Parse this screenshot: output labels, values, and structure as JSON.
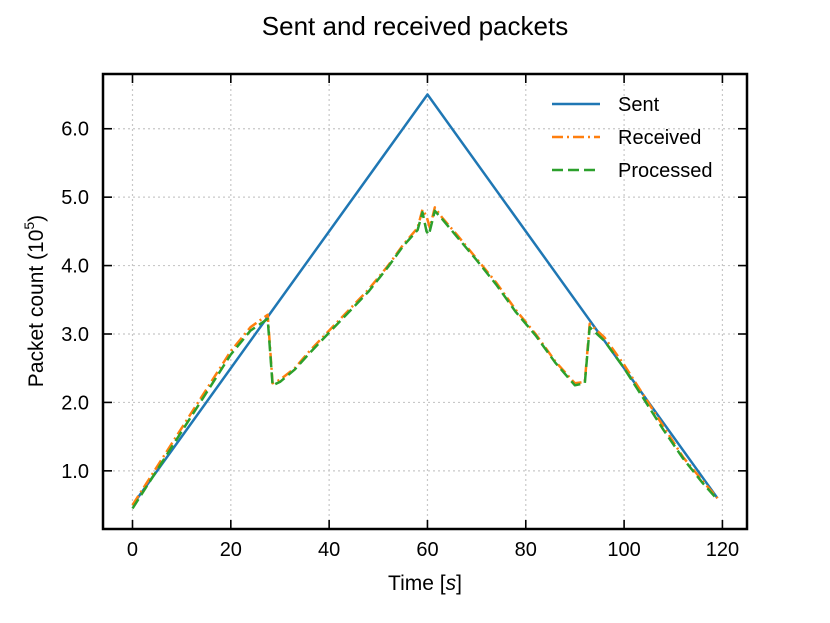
{
  "chart_data": {
    "type": "line",
    "title": "Sent and received packets",
    "xlabel": "Time [",
    "xlabel_unit": "s",
    "xlabel_close": "]",
    "ylabel": "Packet count (10",
    "ylabel_exp": "5",
    "ylabel_close": ")",
    "xlim": [
      -6,
      125
    ],
    "ylim": [
      0.15,
      6.8
    ],
    "xticks": [
      0,
      20,
      40,
      60,
      80,
      100,
      120
    ],
    "xtick_labels": [
      "0",
      "20",
      "40",
      "60",
      "80",
      "100",
      "120"
    ],
    "yticks": [
      1,
      2,
      3,
      4,
      5,
      6
    ],
    "ytick_labels": [
      "1.0",
      "2.0",
      "3.0",
      "4.0",
      "5.0",
      "6.0"
    ],
    "grid": true,
    "legend_position": "top-right",
    "series": [
      {
        "name": "Sent",
        "color": "#1f77b4",
        "style": "solid",
        "x": [
          0,
          28,
          60,
          93,
          119
        ],
        "y": [
          0.5,
          3.3,
          6.5,
          3.2,
          0.6
        ]
      },
      {
        "name": "Received",
        "color": "#ff7f0e",
        "style": "dashdot",
        "x": [
          0,
          4,
          8,
          12,
          16,
          20,
          24,
          27.5,
          28.5,
          30,
          33,
          36,
          40,
          44,
          48,
          52,
          55,
          58,
          59,
          59.8,
          60.5,
          61.5,
          63,
          66,
          70,
          74,
          78,
          82,
          86,
          90,
          92,
          93,
          96,
          100,
          104,
          108,
          112,
          116,
          119
        ],
        "y": [
          0.5,
          0.95,
          1.4,
          1.85,
          2.3,
          2.75,
          3.1,
          3.28,
          2.28,
          2.33,
          2.5,
          2.75,
          3.05,
          3.35,
          3.65,
          4.0,
          4.3,
          4.55,
          4.82,
          4.72,
          4.55,
          4.85,
          4.7,
          4.45,
          4.1,
          3.75,
          3.35,
          3.0,
          2.6,
          2.28,
          2.3,
          3.15,
          2.95,
          2.55,
          2.1,
          1.65,
          1.2,
          0.85,
          0.6
        ]
      },
      {
        "name": "Processed",
        "color": "#2ca02c",
        "style": "dashed",
        "x": [
          0,
          4,
          8,
          12,
          16,
          20,
          24,
          27.5,
          28.5,
          30,
          33,
          36,
          40,
          44,
          48,
          52,
          55,
          58,
          59,
          59.8,
          60.3,
          61.5,
          63,
          66,
          70,
          74,
          78,
          82,
          86,
          90,
          92,
          93,
          96,
          100,
          104,
          108,
          112,
          116,
          119
        ],
        "y": [
          0.45,
          0.9,
          1.35,
          1.8,
          2.25,
          2.7,
          3.05,
          3.22,
          2.25,
          2.3,
          2.48,
          2.72,
          3.02,
          3.32,
          3.62,
          3.98,
          4.28,
          4.52,
          4.78,
          4.5,
          4.45,
          4.8,
          4.68,
          4.42,
          4.08,
          3.72,
          3.32,
          2.98,
          2.58,
          2.25,
          2.28,
          3.1,
          2.9,
          2.5,
          2.05,
          1.6,
          1.18,
          0.82,
          0.58
        ]
      }
    ]
  }
}
